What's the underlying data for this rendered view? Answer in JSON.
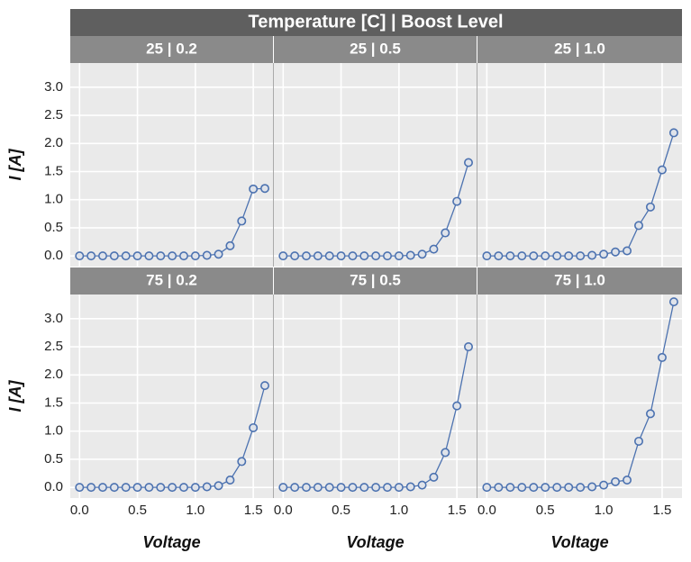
{
  "title": "Temperature [C] | Boost Level",
  "chart_data": [
    {
      "type": "line",
      "title": "25 | 0.2",
      "ylabel": "I [A]",
      "color": "#4c72b0",
      "x": [
        0,
        0.1,
        0.2,
        0.3,
        0.4,
        0.5,
        0.6,
        0.7,
        0.8,
        0.9,
        1.0,
        1.1,
        1.2,
        1.3,
        1.4,
        1.5,
        1.6
      ],
      "values": [
        0,
        0,
        0,
        0,
        0,
        0,
        0,
        0,
        0,
        0,
        0,
        0.01,
        0.03,
        0.18,
        0.62,
        1.19,
        1.2
      ],
      "xlim": [
        -0.08,
        1.67
      ],
      "ylim": [
        -0.19,
        3.43
      ],
      "xticks": [
        0,
        0.5,
        1,
        1.5
      ],
      "yticks": [
        {
          "value": 0,
          "label": "0.0"
        },
        {
          "value": 0.5,
          "label": "0.5"
        },
        {
          "value": 1,
          "label": "1.0"
        },
        {
          "value": 1.5,
          "label": "1.5"
        },
        {
          "value": 2,
          "label": "2.0"
        },
        {
          "value": 2.5,
          "label": "2.5"
        },
        {
          "value": 3,
          "label": "3.0"
        }
      ],
      "grid": true
    },
    {
      "type": "line",
      "title": "25 | 0.5",
      "color": "#4c72b0",
      "x": [
        0,
        0.1,
        0.2,
        0.3,
        0.4,
        0.5,
        0.6,
        0.7,
        0.8,
        0.9,
        1.0,
        1.1,
        1.2,
        1.3,
        1.4,
        1.5,
        1.6
      ],
      "values": [
        0,
        0,
        0,
        0,
        0,
        0,
        0,
        0,
        0,
        0,
        0,
        0.01,
        0.03,
        0.12,
        0.41,
        0.97,
        1.66
      ],
      "xlim": [
        -0.08,
        1.67
      ],
      "ylim": [
        -0.19,
        3.43
      ],
      "xticks": [
        0,
        0.5,
        1,
        1.5
      ],
      "yticks": [
        0,
        0.5,
        1,
        1.5,
        2,
        2.5,
        3
      ],
      "grid": true
    },
    {
      "type": "line",
      "title": "25 | 1.0",
      "color": "#4c72b0",
      "x": [
        0,
        0.1,
        0.2,
        0.3,
        0.4,
        0.5,
        0.6,
        0.7,
        0.8,
        0.9,
        1.0,
        1.1,
        1.2,
        1.3,
        1.4,
        1.5,
        1.6
      ],
      "values": [
        0,
        0,
        0,
        0,
        0,
        0,
        0,
        0,
        0,
        0.01,
        0.03,
        0.07,
        0.09,
        0.54,
        0.87,
        1.53,
        2.19
      ],
      "xlim": [
        -0.08,
        1.67
      ],
      "ylim": [
        -0.19,
        3.43
      ],
      "xticks": [
        0,
        0.5,
        1,
        1.5
      ],
      "yticks": [
        0,
        0.5,
        1,
        1.5,
        2,
        2.5,
        3
      ],
      "grid": true
    },
    {
      "type": "line",
      "title": "75 | 0.2",
      "xlabel": "Voltage",
      "ylabel": "I [A]",
      "color": "#4c72b0",
      "x": [
        0,
        0.1,
        0.2,
        0.3,
        0.4,
        0.5,
        0.6,
        0.7,
        0.8,
        0.9,
        1.0,
        1.1,
        1.2,
        1.3,
        1.4,
        1.5,
        1.6
      ],
      "values": [
        0,
        0,
        0,
        0,
        0,
        0,
        0,
        0,
        0,
        0,
        0,
        0.01,
        0.03,
        0.13,
        0.46,
        1.06,
        1.81
      ],
      "xlim": [
        -0.08,
        1.67
      ],
      "ylim": [
        -0.19,
        3.43
      ],
      "xticks": [
        {
          "value": 0,
          "label": "0.0"
        },
        {
          "value": 0.5,
          "label": "0.5"
        },
        {
          "value": 1,
          "label": "1.0"
        },
        {
          "value": 1.5,
          "label": "1.5"
        }
      ],
      "yticks": [
        {
          "value": 0,
          "label": "0.0"
        },
        {
          "value": 0.5,
          "label": "0.5"
        },
        {
          "value": 1,
          "label": "1.0"
        },
        {
          "value": 1.5,
          "label": "1.5"
        },
        {
          "value": 2,
          "label": "2.0"
        },
        {
          "value": 2.5,
          "label": "2.5"
        },
        {
          "value": 3,
          "label": "3.0"
        }
      ],
      "grid": true
    },
    {
      "type": "line",
      "title": "75 | 0.5",
      "xlabel": "Voltage",
      "color": "#4c72b0",
      "x": [
        0,
        0.1,
        0.2,
        0.3,
        0.4,
        0.5,
        0.6,
        0.7,
        0.8,
        0.9,
        1.0,
        1.1,
        1.2,
        1.3,
        1.4,
        1.5,
        1.6
      ],
      "values": [
        0,
        0,
        0,
        0,
        0,
        0,
        0,
        0,
        0,
        0,
        0,
        0.01,
        0.04,
        0.18,
        0.62,
        1.45,
        2.5
      ],
      "xlim": [
        -0.08,
        1.67
      ],
      "ylim": [
        -0.19,
        3.43
      ],
      "xticks": [
        {
          "value": 0,
          "label": "0.0"
        },
        {
          "value": 0.5,
          "label": "0.5"
        },
        {
          "value": 1,
          "label": "1.0"
        },
        {
          "value": 1.5,
          "label": "1.5"
        }
      ],
      "yticks": [
        0,
        0.5,
        1,
        1.5,
        2,
        2.5,
        3
      ],
      "grid": true
    },
    {
      "type": "line",
      "title": "75 | 1.0",
      "xlabel": "Voltage",
      "color": "#4c72b0",
      "x": [
        0,
        0.1,
        0.2,
        0.3,
        0.4,
        0.5,
        0.6,
        0.7,
        0.8,
        0.9,
        1.0,
        1.1,
        1.2,
        1.3,
        1.4,
        1.5,
        1.6
      ],
      "values": [
        0,
        0,
        0,
        0,
        0,
        0,
        0,
        0,
        0,
        0.01,
        0.04,
        0.1,
        0.13,
        0.82,
        1.31,
        2.31,
        3.3
      ],
      "xlim": [
        -0.08,
        1.67
      ],
      "ylim": [
        -0.19,
        3.43
      ],
      "xticks": [
        {
          "value": 0,
          "label": "0.0"
        },
        {
          "value": 0.5,
          "label": "0.5"
        },
        {
          "value": 1,
          "label": "1.0"
        },
        {
          "value": 1.5,
          "label": "1.5"
        }
      ],
      "yticks": [
        0,
        0.5,
        1,
        1.5,
        2,
        2.5,
        3
      ],
      "grid": true
    }
  ]
}
